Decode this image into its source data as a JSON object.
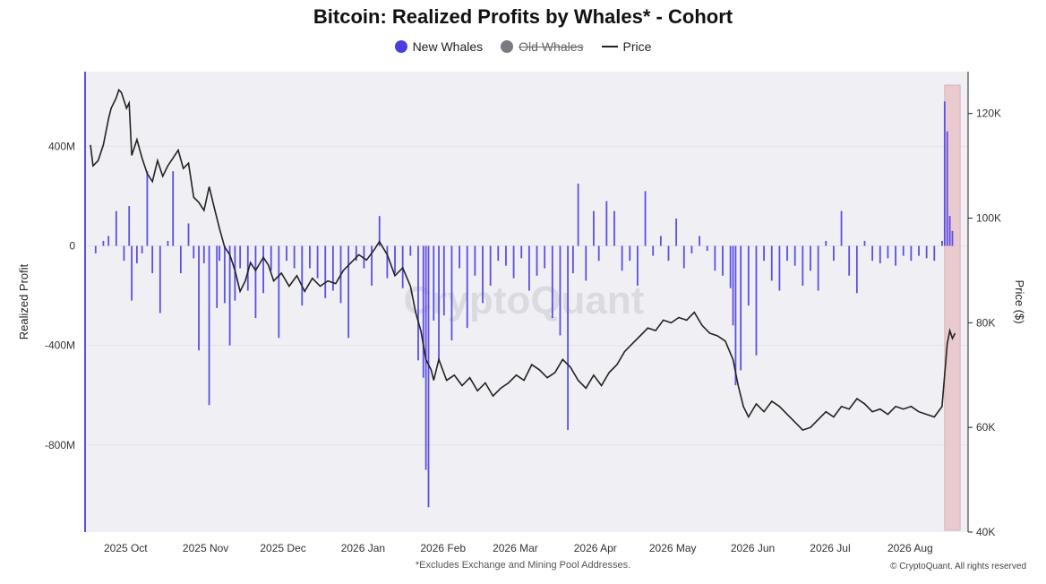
{
  "chart_data": {
    "type": "bar",
    "title": "Bitcoin: Realized Profits by Whales* - Cohort",
    "legend": [
      {
        "name": "New Whales",
        "color": "#4b3ee0",
        "style": "dot",
        "hidden": false
      },
      {
        "name": "Old Whales",
        "color": "#7a7a80",
        "style": "dot",
        "hidden": true
      },
      {
        "name": "Price",
        "color": "#222222",
        "style": "line",
        "hidden": false
      }
    ],
    "legend_position": "top-center",
    "ylabel": "Realized Profit",
    "y2label": "Price ($)",
    "ylim": [
      -1150,
      700
    ],
    "y2lim": [
      40000,
      128000
    ],
    "yticks": [
      {
        "v": 400,
        "label": "400M"
      },
      {
        "v": 0,
        "label": "0"
      },
      {
        "v": -400,
        "label": "-400M"
      },
      {
        "v": -800,
        "label": "-800M"
      }
    ],
    "y2ticks": [
      {
        "v": 120000,
        "label": "120K"
      },
      {
        "v": 100000,
        "label": "100K"
      },
      {
        "v": 80000,
        "label": "80K"
      },
      {
        "v": 60000,
        "label": "60K"
      },
      {
        "v": 40000,
        "label": "40K"
      }
    ],
    "x_start": "2025-09-25",
    "x_end": "2026-08-29",
    "xticks": [
      {
        "date": "2025-10-01",
        "label": "2025 Oct"
      },
      {
        "date": "2025-11-01",
        "label": "2025 Nov"
      },
      {
        "date": "2025-12-01",
        "label": "2025 Dec"
      },
      {
        "date": "2026-01-01",
        "label": "2026 Jan"
      },
      {
        "date": "2026-02-01",
        "label": "2026 Feb"
      },
      {
        "date": "2026-03-01",
        "label": "2026 Mar"
      },
      {
        "date": "2026-04-01",
        "label": "2026 Apr"
      },
      {
        "date": "2026-05-01",
        "label": "2026 May"
      },
      {
        "date": "2026-06-01",
        "label": "2026 Jun"
      },
      {
        "date": "2026-07-01",
        "label": "2026 Jul"
      },
      {
        "date": "2026-08-01",
        "label": "2026 Aug"
      }
    ],
    "bar_series": {
      "name": "New Whales",
      "color": "#5b4ee6",
      "x": [
        "2025-09-27",
        "2025-09-30",
        "2025-10-02",
        "2025-10-05",
        "2025-10-08",
        "2025-10-10",
        "2025-10-11",
        "2025-10-13",
        "2025-10-15",
        "2025-10-17",
        "2025-10-19",
        "2025-10-22",
        "2025-10-25",
        "2025-10-27",
        "2025-10-30",
        "2025-11-02",
        "2025-11-04",
        "2025-11-06",
        "2025-11-08",
        "2025-11-10",
        "2025-11-13",
        "2025-11-14",
        "2025-11-16",
        "2025-11-18",
        "2025-11-20",
        "2025-11-22",
        "2025-11-25",
        "2025-11-28",
        "2025-12-01",
        "2025-12-04",
        "2025-12-07",
        "2025-12-10",
        "2025-12-13",
        "2025-12-16",
        "2025-12-19",
        "2025-12-22",
        "2025-12-25",
        "2025-12-28",
        "2025-12-31",
        "2026-01-03",
        "2026-01-06",
        "2026-01-09",
        "2026-01-12",
        "2026-01-15",
        "2026-01-18",
        "2026-01-21",
        "2026-01-24",
        "2026-01-27",
        "2026-01-30",
        "2026-02-01",
        "2026-02-02",
        "2026-02-03",
        "2026-02-05",
        "2026-02-07",
        "2026-02-09",
        "2026-02-12",
        "2026-02-15",
        "2026-02-18",
        "2026-02-21",
        "2026-02-24",
        "2026-02-27",
        "2026-03-02",
        "2026-03-05",
        "2026-03-08",
        "2026-03-11",
        "2026-03-14",
        "2026-03-17",
        "2026-03-20",
        "2026-03-23",
        "2026-03-26",
        "2026-03-29",
        "2026-03-31",
        "2026-04-02",
        "2026-04-05",
        "2026-04-08",
        "2026-04-10",
        "2026-04-13",
        "2026-04-16",
        "2026-04-19",
        "2026-04-22",
        "2026-04-25",
        "2026-04-28",
        "2026-05-01",
        "2026-05-04",
        "2026-05-07",
        "2026-05-10",
        "2026-05-13",
        "2026-05-16",
        "2026-05-19",
        "2026-05-22",
        "2026-05-25",
        "2026-05-28",
        "2026-05-31",
        "2026-06-01",
        "2026-06-02",
        "2026-06-04",
        "2026-06-07",
        "2026-06-10",
        "2026-06-13",
        "2026-06-16",
        "2026-06-19",
        "2026-06-22",
        "2026-06-25",
        "2026-06-28",
        "2026-07-01",
        "2026-07-04",
        "2026-07-07",
        "2026-07-10",
        "2026-07-13",
        "2026-07-16",
        "2026-07-19",
        "2026-07-22",
        "2026-07-25",
        "2026-07-28",
        "2026-07-31",
        "2026-08-03",
        "2026-08-06",
        "2026-08-09",
        "2026-08-12",
        "2026-08-15",
        "2026-08-18",
        "2026-08-21",
        "2026-08-22",
        "2026-08-23",
        "2026-08-24",
        "2026-08-25"
      ],
      "values": [
        -30,
        20,
        40,
        140,
        -60,
        160,
        -220,
        -70,
        -30,
        300,
        -110,
        -270,
        20,
        300,
        -110,
        90,
        -50,
        -420,
        -70,
        -640,
        -250,
        -60,
        -230,
        -400,
        -220,
        -90,
        -180,
        -290,
        -190,
        -100,
        -370,
        -60,
        -90,
        -240,
        -90,
        -130,
        -210,
        -180,
        -230,
        -370,
        -60,
        -90,
        -160,
        120,
        -130,
        -110,
        -170,
        -40,
        -460,
        -530,
        -900,
        -1050,
        -300,
        -460,
        -280,
        -380,
        -90,
        -330,
        -120,
        -230,
        -160,
        -60,
        -80,
        -130,
        -50,
        -180,
        -120,
        -90,
        -290,
        -360,
        -740,
        -110,
        250,
        -140,
        140,
        -60,
        180,
        140,
        -100,
        -60,
        -160,
        220,
        -40,
        40,
        -60,
        110,
        -90,
        -30,
        40,
        -20,
        -100,
        -120,
        -170,
        -320,
        -560,
        -500,
        -240,
        -440,
        -60,
        -140,
        -180,
        -60,
        -80,
        -160,
        -100,
        -180,
        20,
        -60,
        140,
        -120,
        -190,
        20,
        -60,
        -70,
        -50,
        -80,
        -40,
        -60,
        -40,
        -50,
        -60,
        20,
        580,
        460,
        120,
        60
      ]
    },
    "price_series": {
      "name": "Price",
      "color": "#222222",
      "x": [
        "2025-09-25",
        "2025-09-26",
        "2025-09-28",
        "2025-09-30",
        "2025-10-02",
        "2025-10-03",
        "2025-10-05",
        "2025-10-06",
        "2025-10-07",
        "2025-10-09",
        "2025-10-10",
        "2025-10-11",
        "2025-10-13",
        "2025-10-15",
        "2025-10-17",
        "2025-10-19",
        "2025-10-21",
        "2025-10-23",
        "2025-10-25",
        "2025-10-27",
        "2025-10-29",
        "2025-10-31",
        "2025-11-02",
        "2025-11-04",
        "2025-11-06",
        "2025-11-08",
        "2025-11-10",
        "2025-11-12",
        "2025-11-14",
        "2025-11-16",
        "2025-11-18",
        "2025-11-20",
        "2025-11-22",
        "2025-11-24",
        "2025-11-26",
        "2025-11-28",
        "2025-12-01",
        "2025-12-03",
        "2025-12-05",
        "2025-12-08",
        "2025-12-11",
        "2025-12-14",
        "2025-12-17",
        "2025-12-20",
        "2025-12-23",
        "2025-12-26",
        "2025-12-29",
        "2026-01-01",
        "2026-01-04",
        "2026-01-07",
        "2026-01-10",
        "2026-01-13",
        "2026-01-15",
        "2026-01-18",
        "2026-01-21",
        "2026-01-24",
        "2026-01-27",
        "2026-01-29",
        "2026-01-31",
        "2026-02-02",
        "2026-02-04",
        "2026-02-05",
        "2026-02-07",
        "2026-02-10",
        "2026-02-13",
        "2026-02-16",
        "2026-02-19",
        "2026-02-22",
        "2026-02-25",
        "2026-02-28",
        "2026-03-03",
        "2026-03-06",
        "2026-03-09",
        "2026-03-12",
        "2026-03-15",
        "2026-03-18",
        "2026-03-21",
        "2026-03-24",
        "2026-03-27",
        "2026-03-30",
        "2026-04-02",
        "2026-04-05",
        "2026-04-08",
        "2026-04-11",
        "2026-04-14",
        "2026-04-17",
        "2026-04-20",
        "2026-04-23",
        "2026-04-26",
        "2026-04-29",
        "2026-05-02",
        "2026-05-05",
        "2026-05-08",
        "2026-05-11",
        "2026-05-14",
        "2026-05-17",
        "2026-05-20",
        "2026-05-23",
        "2026-05-26",
        "2026-05-29",
        "2026-06-01",
        "2026-06-03",
        "2026-06-05",
        "2026-06-07",
        "2026-06-10",
        "2026-06-13",
        "2026-06-16",
        "2026-06-19",
        "2026-06-22",
        "2026-06-25",
        "2026-06-28",
        "2026-07-01",
        "2026-07-04",
        "2026-07-07",
        "2026-07-10",
        "2026-07-13",
        "2026-07-16",
        "2026-07-19",
        "2026-07-22",
        "2026-07-25",
        "2026-07-28",
        "2026-07-31",
        "2026-08-03",
        "2026-08-06",
        "2026-08-09",
        "2026-08-12",
        "2026-08-15",
        "2026-08-18",
        "2026-08-21",
        "2026-08-22",
        "2026-08-23",
        "2026-08-24",
        "2026-08-25",
        "2026-08-26"
      ],
      "values": [
        114000,
        110000,
        111000,
        114000,
        119000,
        121000,
        123000,
        124500,
        124000,
        121000,
        122000,
        112000,
        115000,
        111500,
        108500,
        107000,
        111000,
        108000,
        110000,
        111500,
        113000,
        109500,
        110500,
        104000,
        103000,
        101500,
        106000,
        102000,
        98000,
        94500,
        93000,
        90000,
        86000,
        88000,
        91500,
        90000,
        92500,
        91000,
        88000,
        89500,
        87000,
        89000,
        86000,
        88500,
        87000,
        88000,
        87500,
        90000,
        91500,
        93000,
        92000,
        94000,
        95500,
        93000,
        89000,
        90500,
        87000,
        82000,
        78500,
        73000,
        71000,
        69000,
        73000,
        69000,
        70000,
        68000,
        69500,
        67000,
        68500,
        66000,
        67500,
        68500,
        70000,
        69000,
        72000,
        71000,
        69500,
        70500,
        73000,
        71500,
        69000,
        67500,
        70000,
        68000,
        70500,
        72000,
        74500,
        76000,
        77500,
        79000,
        78500,
        80500,
        80000,
        81000,
        80500,
        82000,
        79500,
        78000,
        77500,
        76500,
        73000,
        68000,
        64000,
        62000,
        64500,
        63000,
        65000,
        64000,
        62500,
        61000,
        59500,
        60000,
        61500,
        63000,
        62000,
        64000,
        63500,
        65500,
        64500,
        63000,
        63500,
        62500,
        64000,
        63500,
        64000,
        63000,
        62500,
        62000,
        64000,
        70000,
        76000,
        78500,
        77000,
        78000
      ]
    },
    "highlight_range": [
      "2026-08-22",
      "2026-08-28"
    ],
    "highlight_color": "#e8c4c8",
    "watermark": "CryptoQuant",
    "accent_color": "#5b4ee6"
  },
  "footnote": "*Excludes Exchange and Mining Pool Addresses.",
  "copyright": "© CryptoQuant. All rights reserved"
}
